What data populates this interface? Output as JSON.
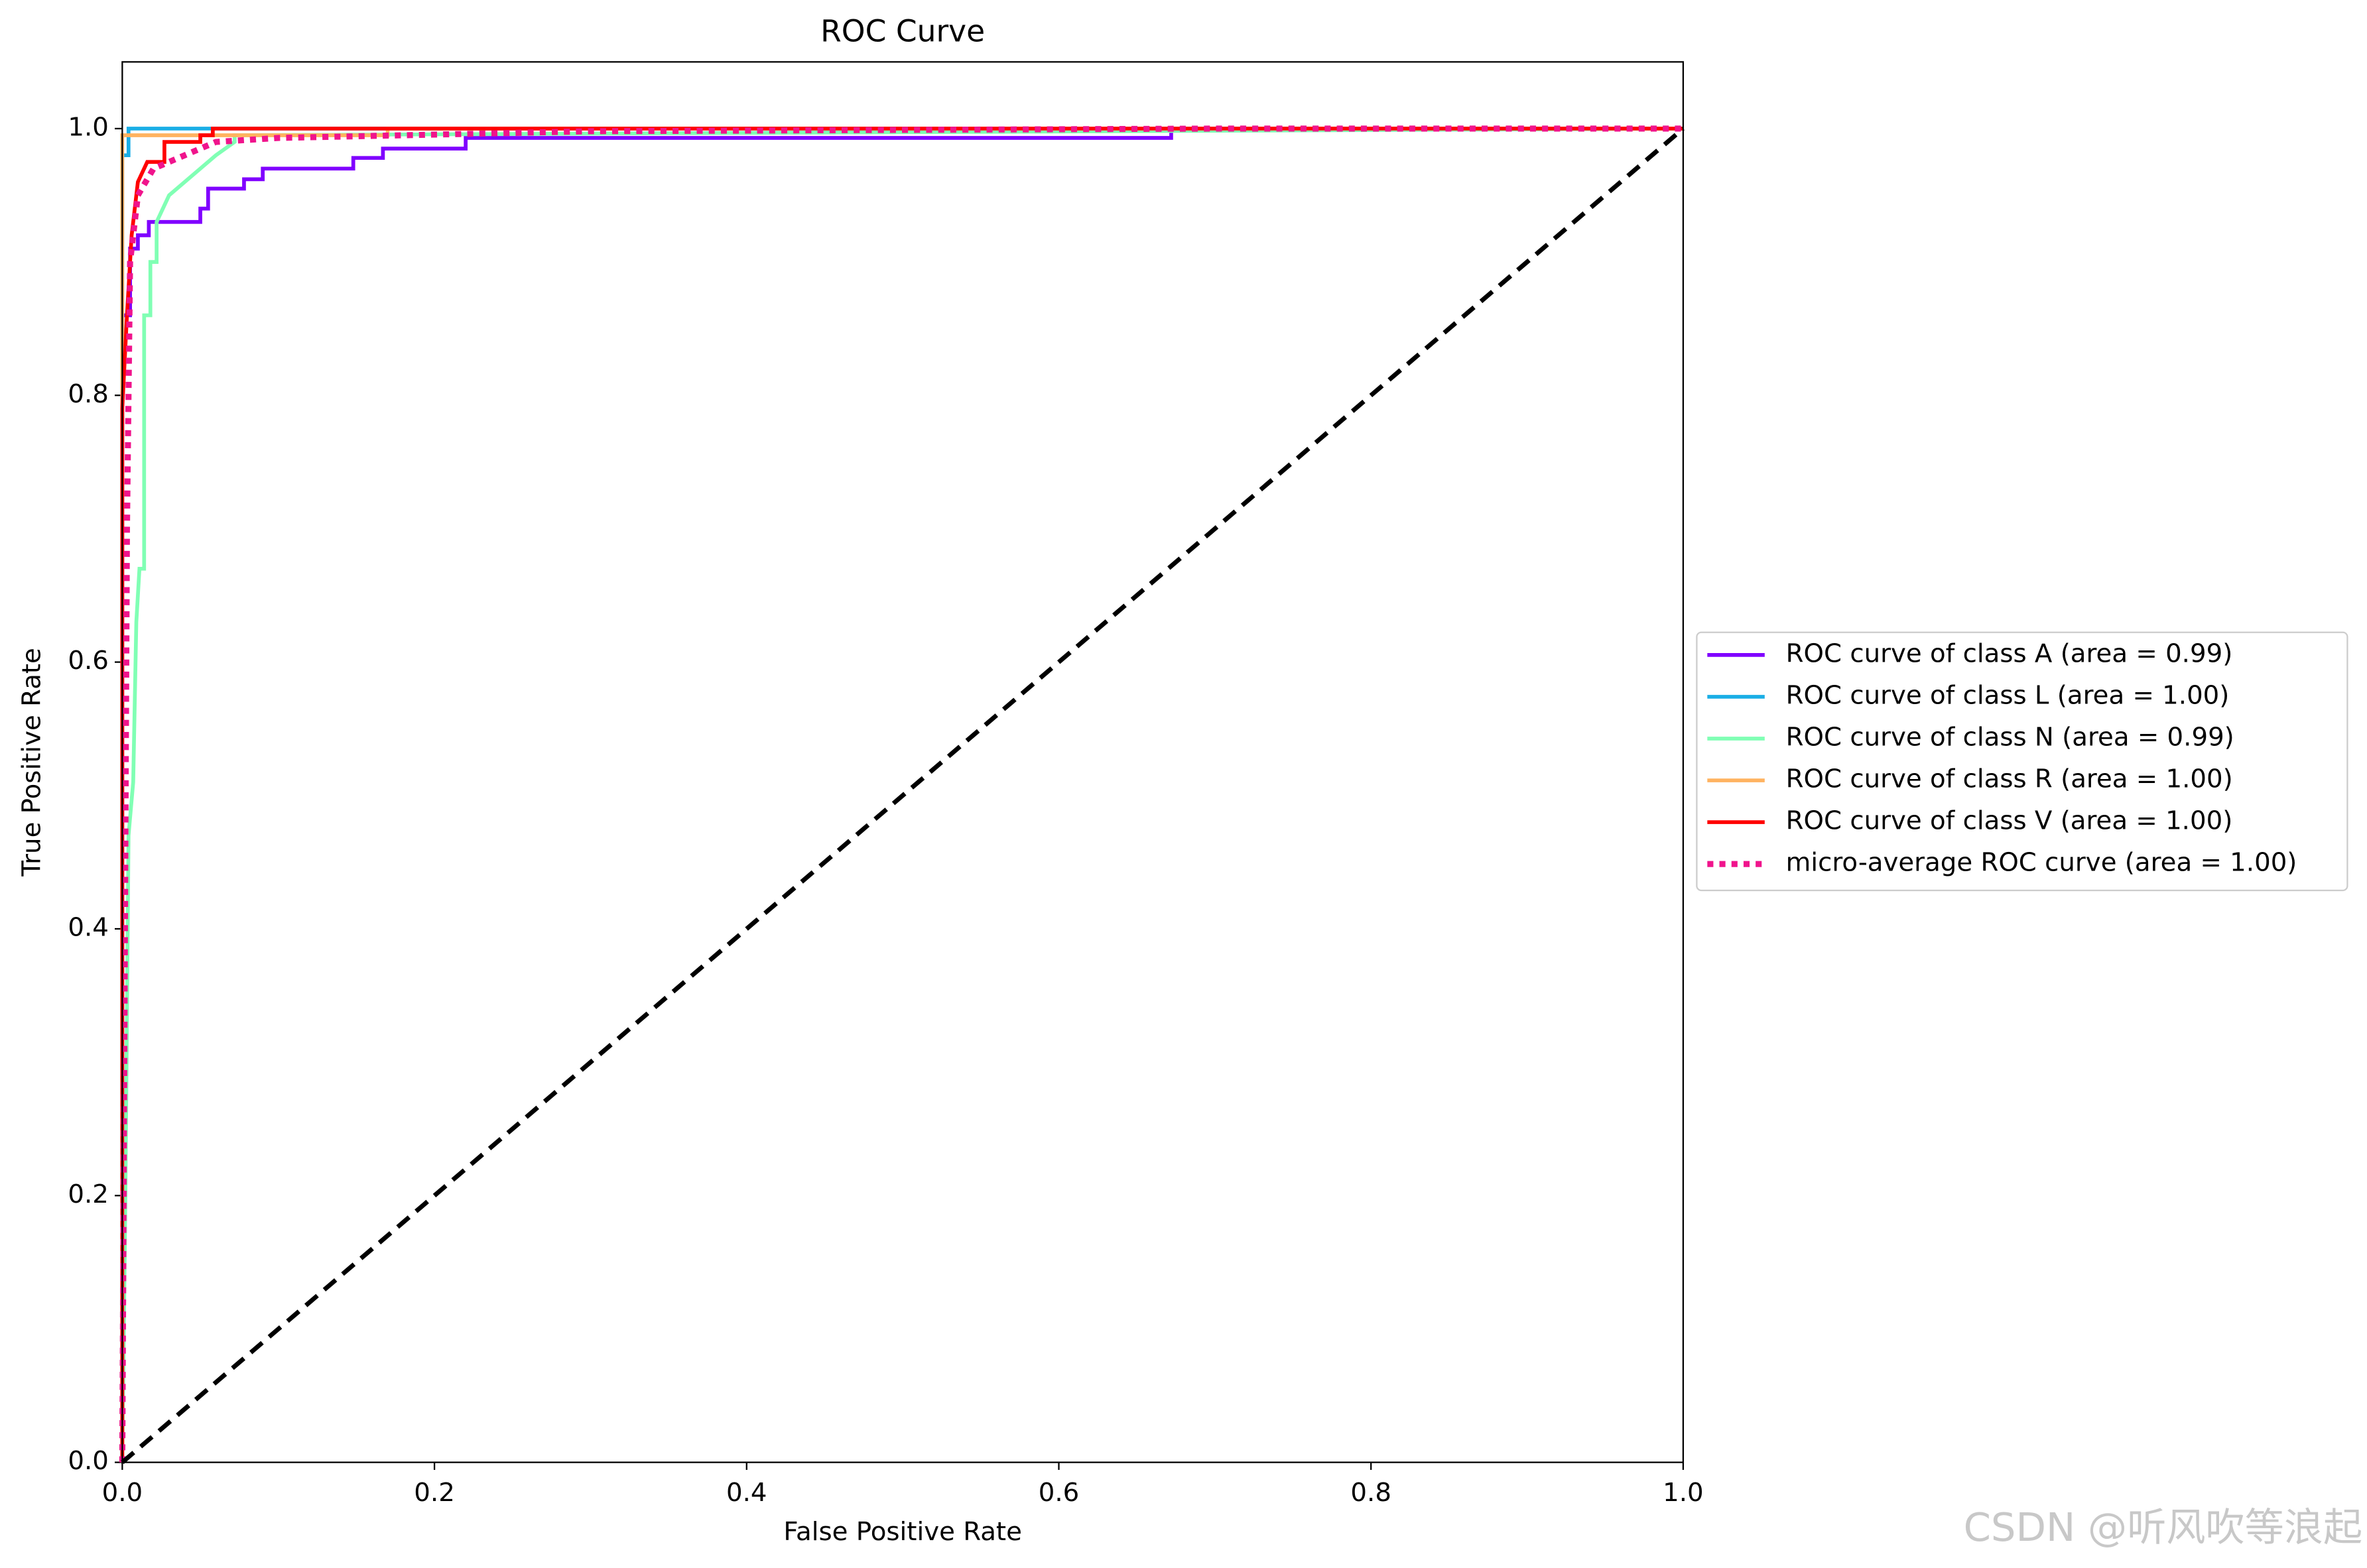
{
  "chart_data": {
    "type": "line",
    "title": "ROC Curve",
    "x_label": "False Positive Rate",
    "y_label": "True Positive Rate",
    "xlim": [
      0,
      1
    ],
    "ylim": [
      0,
      1.05
    ],
    "xticks": [
      {
        "value": 0,
        "label": "0.0"
      },
      0.2,
      0.4,
      0.6,
      0.8,
      {
        "value": 1,
        "label": "1.0"
      }
    ],
    "yticks": [
      {
        "value": 0,
        "label": "0.0"
      },
      0.2,
      0.4,
      0.6,
      0.8,
      {
        "value": 1,
        "label": "1.0"
      }
    ],
    "legend": "right",
    "series": [
      {
        "name": "ROC curve of class A (area = 0.99)",
        "color": "#8000ff",
        "dash": "solid",
        "x": [
          0,
          0,
          0.005,
          0.005,
          0.01,
          0.01,
          0.017,
          0.017,
          0.05,
          0.05,
          0.055,
          0.055,
          0.078,
          0.078,
          0.09,
          0.09,
          0.148,
          0.148,
          0.167,
          0.167,
          0.22,
          0.22,
          0.672,
          0.672,
          1
        ],
        "values": [
          0,
          0.86,
          0.86,
          0.91,
          0.91,
          0.92,
          0.92,
          0.93,
          0.93,
          0.94,
          0.94,
          0.955,
          0.955,
          0.962,
          0.962,
          0.97,
          0.97,
          0.978,
          0.978,
          0.985,
          0.985,
          0.993,
          0.993,
          1,
          1
        ]
      },
      {
        "name": "ROC curve of class L (area = 1.00)",
        "color": "#1aaee6",
        "dash": "solid",
        "x": [
          0,
          0,
          0.004,
          0.004,
          1
        ],
        "values": [
          0,
          0.98,
          0.98,
          1,
          1
        ]
      },
      {
        "name": "ROC curve of class N (area = 0.99)",
        "color": "#80ffb4",
        "dash": "solid",
        "x": [
          0,
          0.002,
          0.004,
          0.007,
          0.009,
          0.011,
          0.014,
          0.014,
          0.018,
          0.018,
          0.022,
          0.022,
          0.03,
          0.04,
          0.05,
          0.06,
          0.072,
          0.072,
          1
        ],
        "values": [
          0,
          0.2,
          0.47,
          0.51,
          0.63,
          0.67,
          0.67,
          0.86,
          0.86,
          0.9,
          0.9,
          0.93,
          0.95,
          0.96,
          0.97,
          0.98,
          0.99,
          0.995,
          1
        ]
      },
      {
        "name": "ROC curve of class R (area = 1.00)",
        "color": "#ffb360",
        "dash": "solid",
        "x": [
          0,
          0,
          0.17,
          0.17,
          1
        ],
        "values": [
          0,
          0.995,
          0.995,
          1,
          1
        ]
      },
      {
        "name": "ROC curve of class V (area = 1.00)",
        "color": "#ff0000",
        "dash": "solid",
        "x": [
          0,
          0,
          0.003,
          0.006,
          0.01,
          0.016,
          0.027,
          0.027,
          0.05,
          0.05,
          0.058,
          0.058,
          1
        ],
        "values": [
          0,
          0.79,
          0.86,
          0.92,
          0.96,
          0.975,
          0.975,
          0.99,
          0.99,
          0.995,
          0.995,
          1,
          1
        ]
      },
      {
        "name": "micro-average ROC curve (area = 1.00)",
        "color": "#f0148c",
        "dash": "dotted",
        "x": [
          0,
          0.003,
          0.005,
          0.01,
          0.02,
          0.04,
          0.06,
          0.1,
          0.3,
          0.7,
          1
        ],
        "values": [
          0,
          0.7,
          0.9,
          0.95,
          0.97,
          0.98,
          0.99,
          0.993,
          0.998,
          1,
          1
        ]
      }
    ],
    "reference_line": {
      "color": "#000000",
      "x": [
        0,
        1
      ],
      "values": [
        0,
        1
      ]
    },
    "watermark": "CSDN @听风吹等浪起"
  }
}
